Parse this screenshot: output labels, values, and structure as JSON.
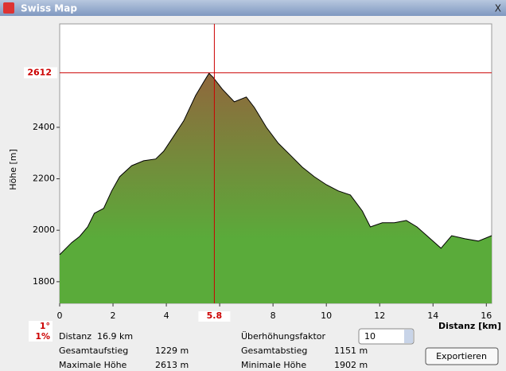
{
  "window": {
    "title": "Swiss Map",
    "close": "X"
  },
  "chart_data": {
    "type": "area",
    "y_label": "Höhe [m]",
    "x_label": "Distanz [km]",
    "x": [
      0,
      0.45,
      0.75,
      1.05,
      1.3,
      1.65,
      1.95,
      2.25,
      2.7,
      3.15,
      3.6,
      3.9,
      4.2,
      4.65,
      5.1,
      5.4,
      5.6,
      5.75,
      6.1,
      6.55,
      7.0,
      7.3,
      7.75,
      8.2,
      8.65,
      9.1,
      9.55,
      10.0,
      10.45,
      10.9,
      11.35,
      11.65,
      12.1,
      12.55,
      13.0,
      13.4,
      13.9,
      14.3,
      14.7,
      15.2,
      15.7,
      16.2
    ],
    "values": [
      1905,
      1952,
      1976,
      2013,
      2066,
      2085,
      2153,
      2208,
      2251,
      2270,
      2277,
      2307,
      2354,
      2425,
      2524,
      2576,
      2610,
      2595,
      2548,
      2499,
      2518,
      2477,
      2400,
      2338,
      2292,
      2245,
      2208,
      2177,
      2153,
      2137,
      2075,
      2013,
      2029,
      2029,
      2038,
      2013,
      1967,
      1930,
      1979,
      1967,
      1958,
      1979
    ],
    "color": "#5aab3a",
    "top_color": "#8e6a3c",
    "line_color": "#000000",
    "xlim": [
      0,
      16.2
    ],
    "ylim": [
      1716,
      2802
    ],
    "xticks": [
      0,
      2,
      4,
      6,
      8,
      10,
      12,
      14,
      16
    ],
    "yticks": [
      1800,
      2000,
      2200,
      2400
    ],
    "cursor": {
      "x": 5.8,
      "y": 2612,
      "color": "#cc0000"
    },
    "slope": [
      "1°",
      "1%"
    ]
  },
  "stats": {
    "distance": {
      "label": "Distanz",
      "value": "16.9 km"
    },
    "ascent": {
      "label": "Gesamtaufstieg",
      "value": "1229 m"
    },
    "max": {
      "label": "Maximale Höhe",
      "value": "2613 m"
    },
    "factor": {
      "label": "Überhöhungsfaktor",
      "value": "10"
    },
    "descent": {
      "label": "Gesamtabstieg",
      "value": "1151 m"
    },
    "min": {
      "label": "Minimale Höhe",
      "value": "1902 m"
    }
  },
  "button": "Exportieren"
}
